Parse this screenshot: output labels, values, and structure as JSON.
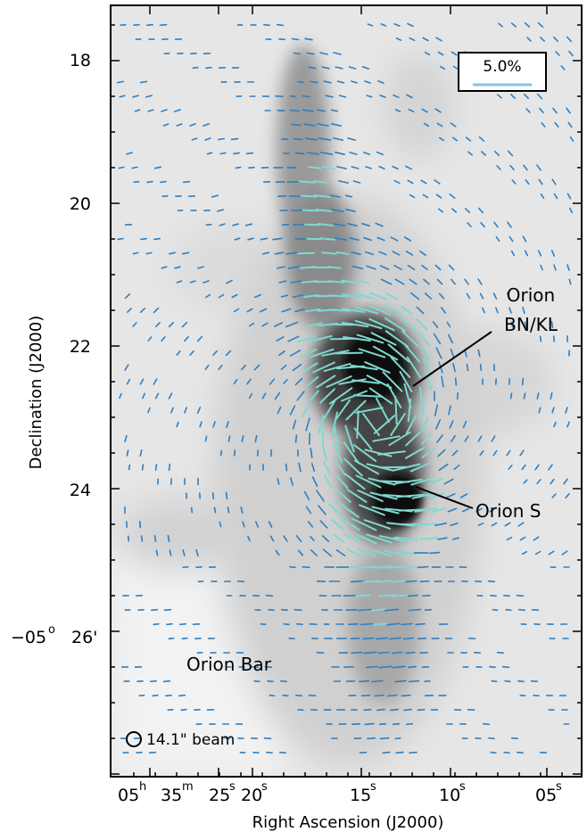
{
  "figure": {
    "x_axis_title": "Right Ascension (J2000)",
    "y_axis_title": "Declination (J2000)",
    "y_ticks": [
      {
        "value": 18,
        "label": "18"
      },
      {
        "value": 20,
        "label": "20"
      },
      {
        "value": 22,
        "label": "22"
      },
      {
        "value": 24,
        "label": "24"
      },
      {
        "value": 26,
        "label": "26'",
        "prefix": "−05",
        "prefix_sup": "o"
      }
    ],
    "x_ticks": [
      {
        "label": "05",
        "sup": "h",
        "label2": "35",
        "sup2": "m"
      },
      {
        "label": "25",
        "sup": "s"
      },
      {
        "label": "20",
        "sup": "s"
      },
      {
        "label": "15",
        "sup": "s"
      },
      {
        "label": "10",
        "sup": "s"
      },
      {
        "label": "05",
        "sup": "s"
      }
    ],
    "annotations": {
      "bnkl_line1": "Orion",
      "bnkl_line2": "BN/KL",
      "orion_s": "Orion S",
      "orion_bar": "Orion Bar"
    },
    "beam_label": "14.1\" beam",
    "scale_bar_label": "5.0%",
    "colors": {
      "vector_strong": "#7fd8d0",
      "vector_weak": "#2f7fc0",
      "scale_bar": "#8ac4e8",
      "background_image": "grayscale"
    }
  }
}
